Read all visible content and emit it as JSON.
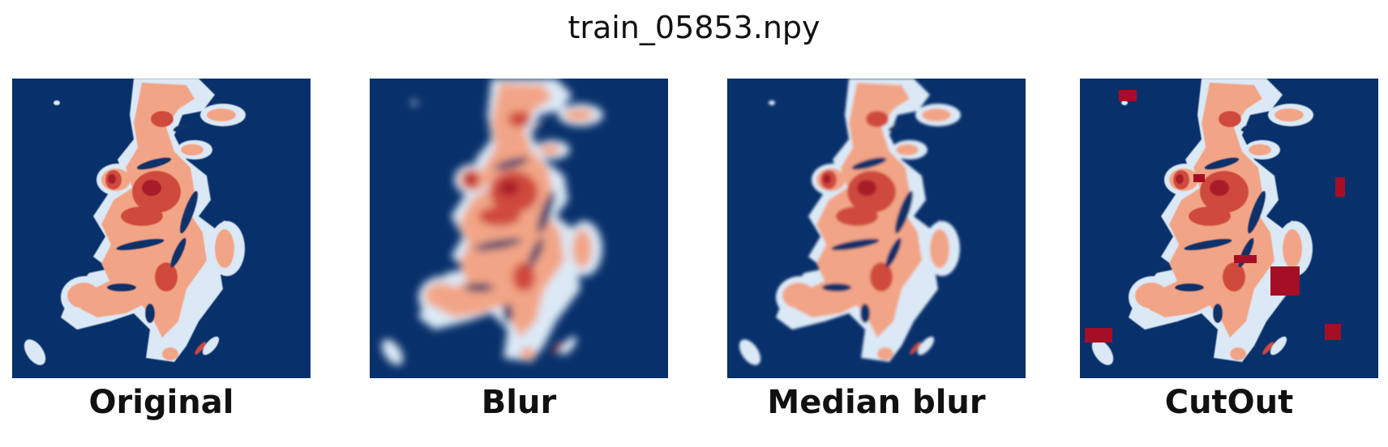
{
  "title": "train_05853.npy",
  "colors": {
    "background": "#08306b",
    "low": "#deebf7",
    "mid": "#f4a582",
    "high": "#b2182b",
    "cutout": "#a50f25"
  },
  "panels": [
    {
      "label": "Original",
      "effect": "none",
      "icon": "radar-field-image"
    },
    {
      "label": "Blur",
      "effect": "blur",
      "icon": "radar-field-image"
    },
    {
      "label": "Median blur",
      "effect": "median-blur",
      "icon": "radar-field-image"
    },
    {
      "label": "CutOut",
      "effect": "cutout",
      "icon": "radar-field-image"
    }
  ]
}
